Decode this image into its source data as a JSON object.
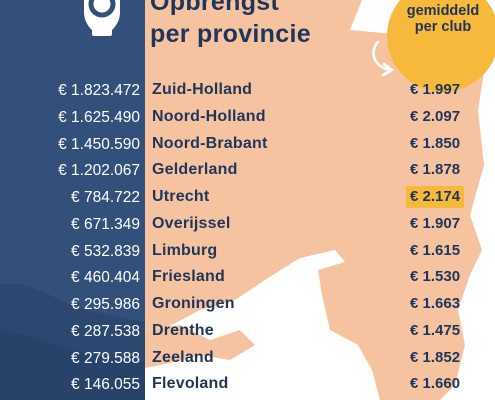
{
  "title": [
    "Opbrengst",
    "per provincie"
  ],
  "badge": [
    "gemiddeld",
    "per club"
  ],
  "colors": {
    "navy": "#33507a",
    "dark_text": "#1f3658",
    "map": "#f6c3a1",
    "highlight": "#f6b93b"
  },
  "chart_data": {
    "type": "table",
    "columns": [
      "Opbrengst",
      "Provincie",
      "gemiddeld per club"
    ],
    "rows": [
      {
        "total": "€ 1.823.472",
        "province": "Zuid-Holland",
        "avg": "€ 1.997"
      },
      {
        "total": "€ 1.625.490",
        "province": "Noord-Holland",
        "avg": "€ 2.097"
      },
      {
        "total": "€ 1.450.590",
        "province": "Noord-Brabant",
        "avg": "€ 1.850"
      },
      {
        "total": "€ 1.202.067",
        "province": "Gelderland",
        "avg": "€ 1.878"
      },
      {
        "total": "€ 784.722",
        "province": "Utrecht",
        "avg": "€ 2.174",
        "highlight": true
      },
      {
        "total": "€ 671.349",
        "province": "Overijssel",
        "avg": "€ 1.907"
      },
      {
        "total": "€ 532.839",
        "province": "Limburg",
        "avg": "€ 1.615"
      },
      {
        "total": "€ 460.404",
        "province": "Friesland",
        "avg": "€ 1.530"
      },
      {
        "total": "€ 295.986",
        "province": "Groningen",
        "avg": "€ 1.663"
      },
      {
        "total": "€ 287.538",
        "province": "Drenthe",
        "avg": "€ 1.475"
      },
      {
        "total": "€ 279.588",
        "province": "Zeeland",
        "avg": "€ 1.852"
      },
      {
        "total": "€ 146.055",
        "province": "Flevoland",
        "avg": "€ 1.660"
      }
    ]
  }
}
